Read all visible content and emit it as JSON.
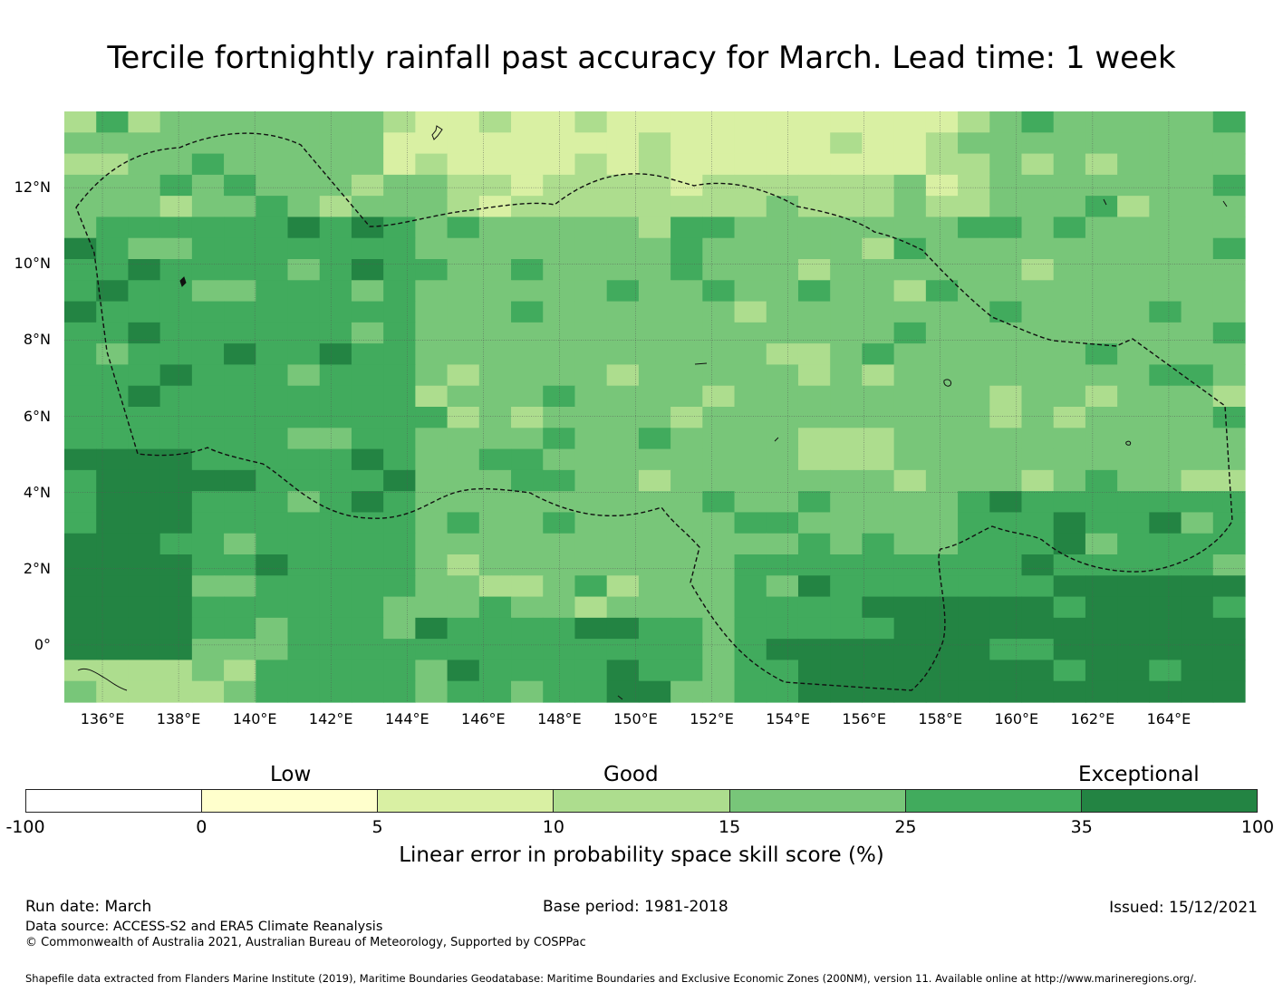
{
  "title": "Tercile fortnightly rainfall past accuracy for March. Lead time: 1 week",
  "map": {
    "lon_range": [
      135,
      166
    ],
    "lat_range": [
      -1.5,
      14
    ],
    "x_ticks": [
      "136°E",
      "138°E",
      "140°E",
      "142°E",
      "144°E",
      "146°E",
      "148°E",
      "150°E",
      "152°E",
      "154°E",
      "156°E",
      "158°E",
      "160°E",
      "162°E",
      "164°E"
    ],
    "y_ticks": [
      "12°N",
      "10°N",
      "8°N",
      "6°N",
      "4°N",
      "2°N",
      "0°"
    ],
    "eez_boundaries": "Federated States of Micronesia exclusive economic zone (dashed outline)"
  },
  "legend": {
    "qualitative": {
      "low": "Low",
      "good": "Good",
      "exceptional": "Exceptional"
    },
    "tick_labels": [
      "-100",
      "0",
      "5",
      "10",
      "15",
      "25",
      "35",
      "100"
    ],
    "colors": [
      "#ffffff",
      "#ffffcc",
      "#d9f0a3",
      "#addd8e",
      "#78c679",
      "#41ab5d",
      "#238443"
    ],
    "title": "Linear error in probability space skill score (%)"
  },
  "footer": {
    "run_date": "Run date: March",
    "base_period": "Base period: 1981-2018",
    "issued": "Issued: 15/12/2021",
    "data_source": "Data source: ACCESS-S2 and ERA5 Climate Reanalysis",
    "copyright": "© Commonwealth of Australia 2021, Australian Bureau of Meteorology, Supported by COSPPac",
    "shapefile": "Shapefile data extracted from Flanders Marine Institute (2019), Maritime Boundaries Geodatabase: Maritime Boundaries and Exclusive Economic Zones (200NM), version 11. Available online at http://www.marineregions.org/."
  }
}
